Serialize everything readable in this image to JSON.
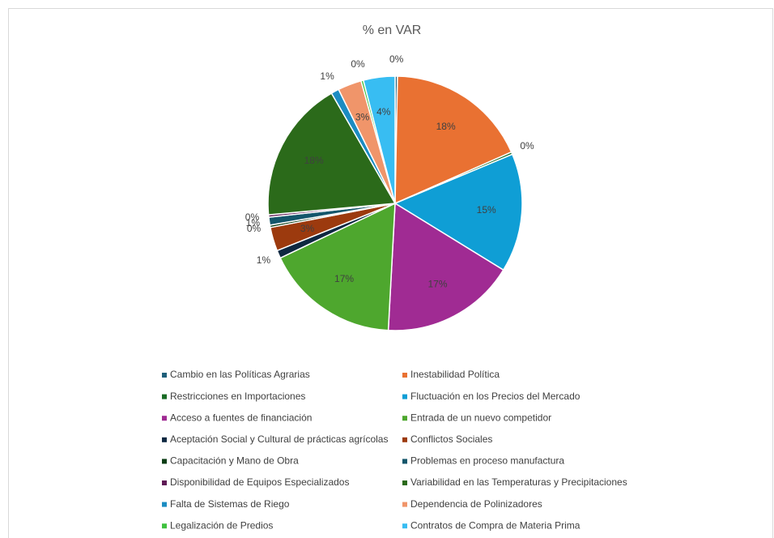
{
  "chart_data": {
    "type": "pie",
    "title": "% en VAR",
    "categories": [
      "Cambio en las Políticas Agrarias",
      "Inestabilidad Política",
      "Restricciones en Importaciones",
      "Fluctuación en los Precios del Mercado",
      "Acceso a fuentes de financiación",
      "Entrada de un nuevo competidor",
      "Aceptación Social y Cultural de prácticas agrícolas",
      "Conflictos Sociales",
      "Capacitación y Mano de Obra",
      "Problemas en proceso manufactura",
      "Disponibilidad de Equipos Especializados",
      "Variabilidad en las Temperaturas y Precipitaciones",
      "Falta de Sistemas de Riego",
      "Dependencia de Polinizadores",
      "Legalización de Predios",
      "Contratos de Compra de Materia Prima"
    ],
    "values": [
      0.3,
      18,
      0.3,
      15,
      17,
      17,
      1,
      3,
      0.3,
      1,
      0.3,
      18,
      1,
      3,
      0.3,
      4
    ],
    "value_labels": [
      "0%",
      "18%",
      "0%",
      "15%",
      "17%",
      "17%",
      "1%",
      "3%",
      "0%",
      "1%",
      "0%",
      "18%",
      "1%",
      "3%",
      "0%",
      "4%"
    ],
    "colors": [
      "#1f5f7a",
      "#e97132",
      "#196b24",
      "#0f9ed5",
      "#a02b93",
      "#4ea72e",
      "#0e2841",
      "#9c3a0e",
      "#0b3d15",
      "#14566b",
      "#5e1a55",
      "#2b6a1a",
      "#1b8cc2",
      "#f0956a",
      "#3ec13e",
      "#38bdf2"
    ],
    "legend": "bottom"
  }
}
